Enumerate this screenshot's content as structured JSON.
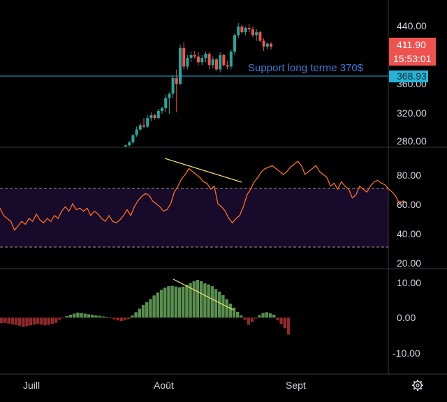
{
  "colors": {
    "background": "#000000",
    "up": "#26a69a",
    "down": "#ef5350",
    "rsi_line": "#ff6f22",
    "rsi_band": "#170a2b",
    "trendline": "#f5e663",
    "hist_pos": "#5a8f4f",
    "hist_neg": "#8f2a2a",
    "support_line": "#2aa7d8",
    "support_text": "#3a7bd5",
    "axis_text": "#d1d4dc",
    "grid": "#3a3a3a",
    "price_label": "#ef5350",
    "support_label": "#26b3d6"
  },
  "price_panel": {
    "axis_ticks": [
      "440.00",
      "320.00",
      "280.00"
    ],
    "last_price": "411.90",
    "countdown": "15:53:01",
    "support_price": "368.93",
    "support_annotation": "Support long terme 370$"
  },
  "rsi_panel": {
    "axis_ticks": [
      "80.00",
      "60.00",
      "40.00",
      "20.00"
    ]
  },
  "macd_panel": {
    "axis_ticks": [
      "10.00",
      "0.00",
      "-10.00"
    ]
  },
  "time_axis": {
    "labels": [
      "Juill",
      "Août",
      "Sept"
    ]
  },
  "icons": {
    "settings": "gear-icon"
  },
  "chart_data": [
    {
      "type": "candlestick",
      "title": "",
      "ylim": [
        270,
        460
      ],
      "x_start": 180,
      "x_step": 5.2,
      "candles": [
        [
          272,
          275,
          270,
          274
        ],
        [
          274,
          280,
          272,
          278
        ],
        [
          278,
          290,
          276,
          288
        ],
        [
          288,
          300,
          286,
          296
        ],
        [
          296,
          305,
          294,
          302
        ],
        [
          302,
          312,
          298,
          300
        ],
        [
          300,
          316,
          298,
          312
        ],
        [
          312,
          320,
          308,
          316
        ],
        [
          316,
          318,
          310,
          312
        ],
        [
          312,
          325,
          310,
          322
        ],
        [
          322,
          328,
          318,
          326
        ],
        [
          326,
          345,
          320,
          340
        ],
        [
          340,
          348,
          318,
          346
        ],
        [
          346,
          372,
          340,
          368
        ],
        [
          368,
          380,
          320,
          360
        ],
        [
          360,
          415,
          358,
          410
        ],
        [
          410,
          418,
          380,
          384
        ],
        [
          384,
          400,
          380,
          396
        ],
        [
          396,
          405,
          390,
          400
        ],
        [
          400,
          406,
          395,
          398
        ],
        [
          398,
          404,
          386,
          390
        ],
        [
          390,
          400,
          386,
          396
        ],
        [
          396,
          405,
          390,
          402
        ],
        [
          402,
          404,
          380,
          386
        ],
        [
          386,
          398,
          382,
          394
        ],
        [
          394,
          396,
          378,
          380
        ],
        [
          380,
          404,
          376,
          400
        ],
        [
          400,
          402,
          384,
          386
        ],
        [
          386,
          392,
          380,
          384
        ],
        [
          384,
          408,
          380,
          405
        ],
        [
          405,
          430,
          400,
          428
        ],
        [
          428,
          445,
          424,
          440
        ],
        [
          440,
          442,
          430,
          432
        ],
        [
          432,
          440,
          428,
          438
        ],
        [
          438,
          444,
          432,
          436
        ],
        [
          436,
          440,
          425,
          428
        ],
        [
          428,
          436,
          420,
          432
        ],
        [
          432,
          434,
          418,
          420
        ],
        [
          420,
          424,
          406,
          412
        ],
        [
          412,
          418,
          408,
          416
        ],
        [
          416,
          418,
          408,
          411.9
        ]
      ]
    },
    {
      "type": "line",
      "title": "",
      "ylim": [
        16,
        92
      ],
      "overbought": 70,
      "oversold": 30,
      "x_start": 0,
      "x_step": 5.2,
      "values": [
        57,
        52,
        50,
        48,
        42,
        45,
        48,
        46,
        50,
        48,
        53,
        49,
        47,
        50,
        48,
        52,
        50,
        55,
        58,
        55,
        60,
        56,
        57,
        55,
        57,
        52,
        55,
        53,
        50,
        48,
        52,
        48,
        47,
        49,
        52,
        56,
        52,
        58,
        62,
        65,
        67,
        66,
        62,
        60,
        58,
        55,
        56,
        60,
        68,
        72,
        77,
        80,
        84,
        82,
        80,
        78,
        75,
        74,
        70,
        72,
        60,
        58,
        55,
        50,
        47,
        50,
        52,
        58,
        66,
        70,
        75,
        78,
        82,
        84,
        85,
        86,
        84,
        82,
        80,
        82,
        85,
        87,
        89,
        86,
        80,
        82,
        84,
        86,
        82,
        80,
        78,
        72,
        74,
        70,
        75,
        72,
        70,
        64,
        66,
        72,
        70,
        68,
        72,
        75,
        76,
        74,
        73,
        70,
        68,
        65,
        60,
        62,
        60
      ]
    },
    {
      "type": "bar",
      "title": "",
      "ylim": [
        -15,
        15
      ],
      "x_start": 0,
      "x_step": 5.2,
      "values": [
        -1.6,
        -1.5,
        -1.7,
        -1.9,
        -2.1,
        -2.3,
        -2.6,
        -2.4,
        -2.2,
        -2.0,
        -1.8,
        -2.0,
        -2.2,
        -2.0,
        -1.8,
        -1.5,
        -0.6,
        -0.2,
        0.4,
        0.8,
        1.1,
        1.4,
        1.3,
        1.1,
        0.9,
        0.8,
        0.6,
        0.5,
        0.3,
        0.2,
        -0.2,
        -0.5,
        -0.8,
        -1.0,
        -0.7,
        -0.4,
        0.6,
        1.5,
        2.5,
        3.5,
        4.3,
        5.2,
        6.2,
        7.0,
        7.8,
        8.4,
        8.8,
        8.9,
        8.7,
        8.5,
        8.7,
        9.2,
        9.7,
        10.2,
        10.6,
        10.2,
        9.6,
        9.3,
        8.8,
        8.0,
        7.3,
        6.3,
        5.2,
        3.9,
        2.8,
        1.6,
        0.6,
        -0.6,
        -2.0,
        -1.2,
        -0.3,
        0.7,
        1.3,
        1.5,
        1.2,
        0.8,
        -0.8,
        -1.8,
        -3.0,
        -4.8
      ]
    }
  ]
}
